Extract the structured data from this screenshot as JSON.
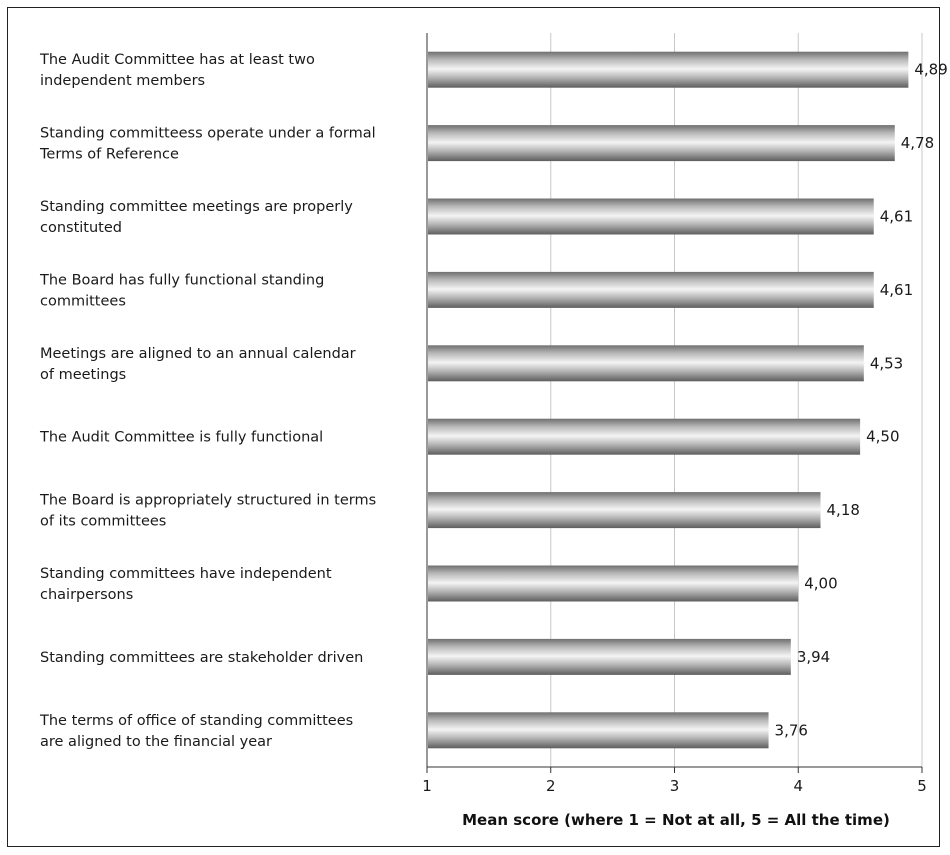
{
  "chart_data": {
    "type": "bar",
    "orientation": "horizontal",
    "categories": [
      [
        "The Audit Committee has at least two",
        "independent members"
      ],
      [
        "Standing committeess operate under a formal",
        "Terms of Reference"
      ],
      [
        "Standing committee meetings are properly",
        "constituted"
      ],
      [
        "The Board has fully functional standing",
        "committees"
      ],
      [
        "Meetings are aligned to an annual calendar",
        "of meetings"
      ],
      [
        "The Audit Committee is fully functional"
      ],
      [
        "The Board is appropriately structured in terms",
        "of its committees"
      ],
      [
        "Standing committees have independent",
        "chairpersons"
      ],
      [
        "Standing committees are stakeholder driven"
      ],
      [
        "The terms of office of standing committees",
        "are aligned to the financial year"
      ]
    ],
    "values": [
      4.89,
      4.78,
      4.61,
      4.61,
      4.53,
      4.5,
      4.18,
      4.0,
      3.94,
      3.76
    ],
    "value_labels": [
      "4,89",
      "4,78",
      "4,61",
      "4,61",
      "4,53",
      "4,50",
      "4,18",
      "4,00",
      "3,94",
      "3,76"
    ],
    "xlim": [
      1,
      5
    ],
    "xticks": [
      "1",
      "2",
      "3",
      "4",
      "5"
    ],
    "xlabel": "Mean score (where 1 = Not at all, 5 = All the time)",
    "grid": "vertical",
    "bar_color": "#a9a9a9"
  }
}
